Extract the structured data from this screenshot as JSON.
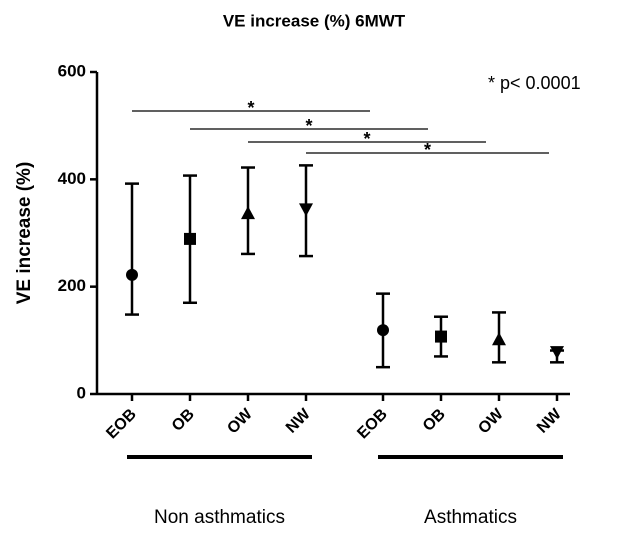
{
  "chart_data": {
    "type": "errorbar",
    "title": "VE increase (%) 6MWT",
    "y_label": "VE increase (%)",
    "annotation": "* p< 0.0001",
    "significance_marks": [
      "*",
      "*",
      "*",
      "*"
    ],
    "ylim": [
      0,
      600
    ],
    "yticks": [
      0,
      200,
      400,
      600
    ],
    "color": "#000000",
    "markers": [
      "circle",
      "square",
      "triangle-up",
      "triangle-down"
    ],
    "groups": [
      {
        "name": "Non asthmatics",
        "categories": [
          "EOB",
          "OB",
          "OW",
          "NW"
        ],
        "values": [
          222,
          289,
          337,
          344
        ],
        "lower": [
          148,
          170,
          261,
          257
        ],
        "upper": [
          392,
          407,
          422,
          426
        ]
      },
      {
        "name": "Asthmatics",
        "categories": [
          "EOB",
          "OB",
          "OW",
          "NW"
        ],
        "values": [
          119,
          107,
          102,
          78
        ],
        "lower": [
          50,
          70,
          59,
          59
        ],
        "upper": [
          187,
          144,
          152,
          81
        ]
      }
    ]
  }
}
